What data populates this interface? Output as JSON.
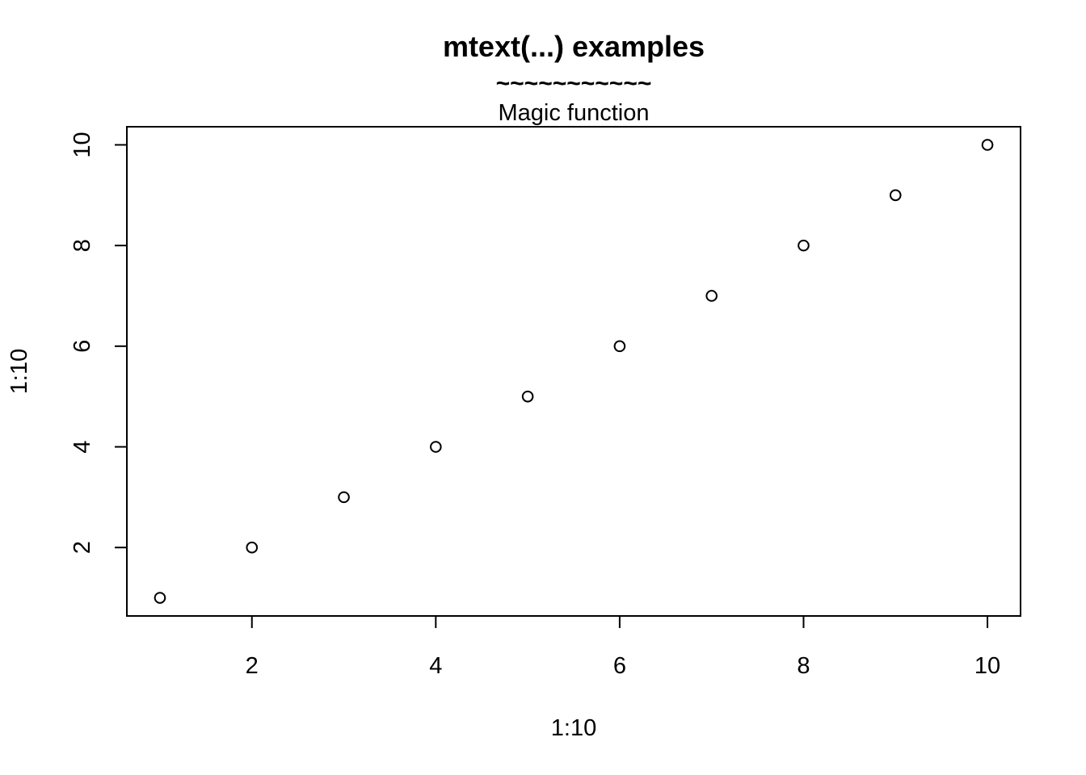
{
  "chart_data": {
    "type": "scatter",
    "title": "mtext(...) examples",
    "mtext_line": "~~~~~~~~~~~",
    "subtitle": "Magic function",
    "xlabel": "1:10",
    "ylabel": "1:10",
    "x": [
      1,
      2,
      3,
      4,
      5,
      6,
      7,
      8,
      9,
      10
    ],
    "y": [
      1,
      2,
      3,
      4,
      5,
      6,
      7,
      8,
      9,
      10
    ],
    "xlim": [
      0.64,
      10.36
    ],
    "ylim": [
      0.64,
      10.36
    ],
    "x_ticks": [
      2,
      4,
      6,
      8,
      10
    ],
    "y_ticks": [
      2,
      4,
      6,
      8,
      10
    ],
    "marker": "open-circle",
    "grid": false,
    "legend": null,
    "colors": {
      "points": "#000000",
      "axes": "#000000",
      "background": "#ffffff"
    }
  }
}
